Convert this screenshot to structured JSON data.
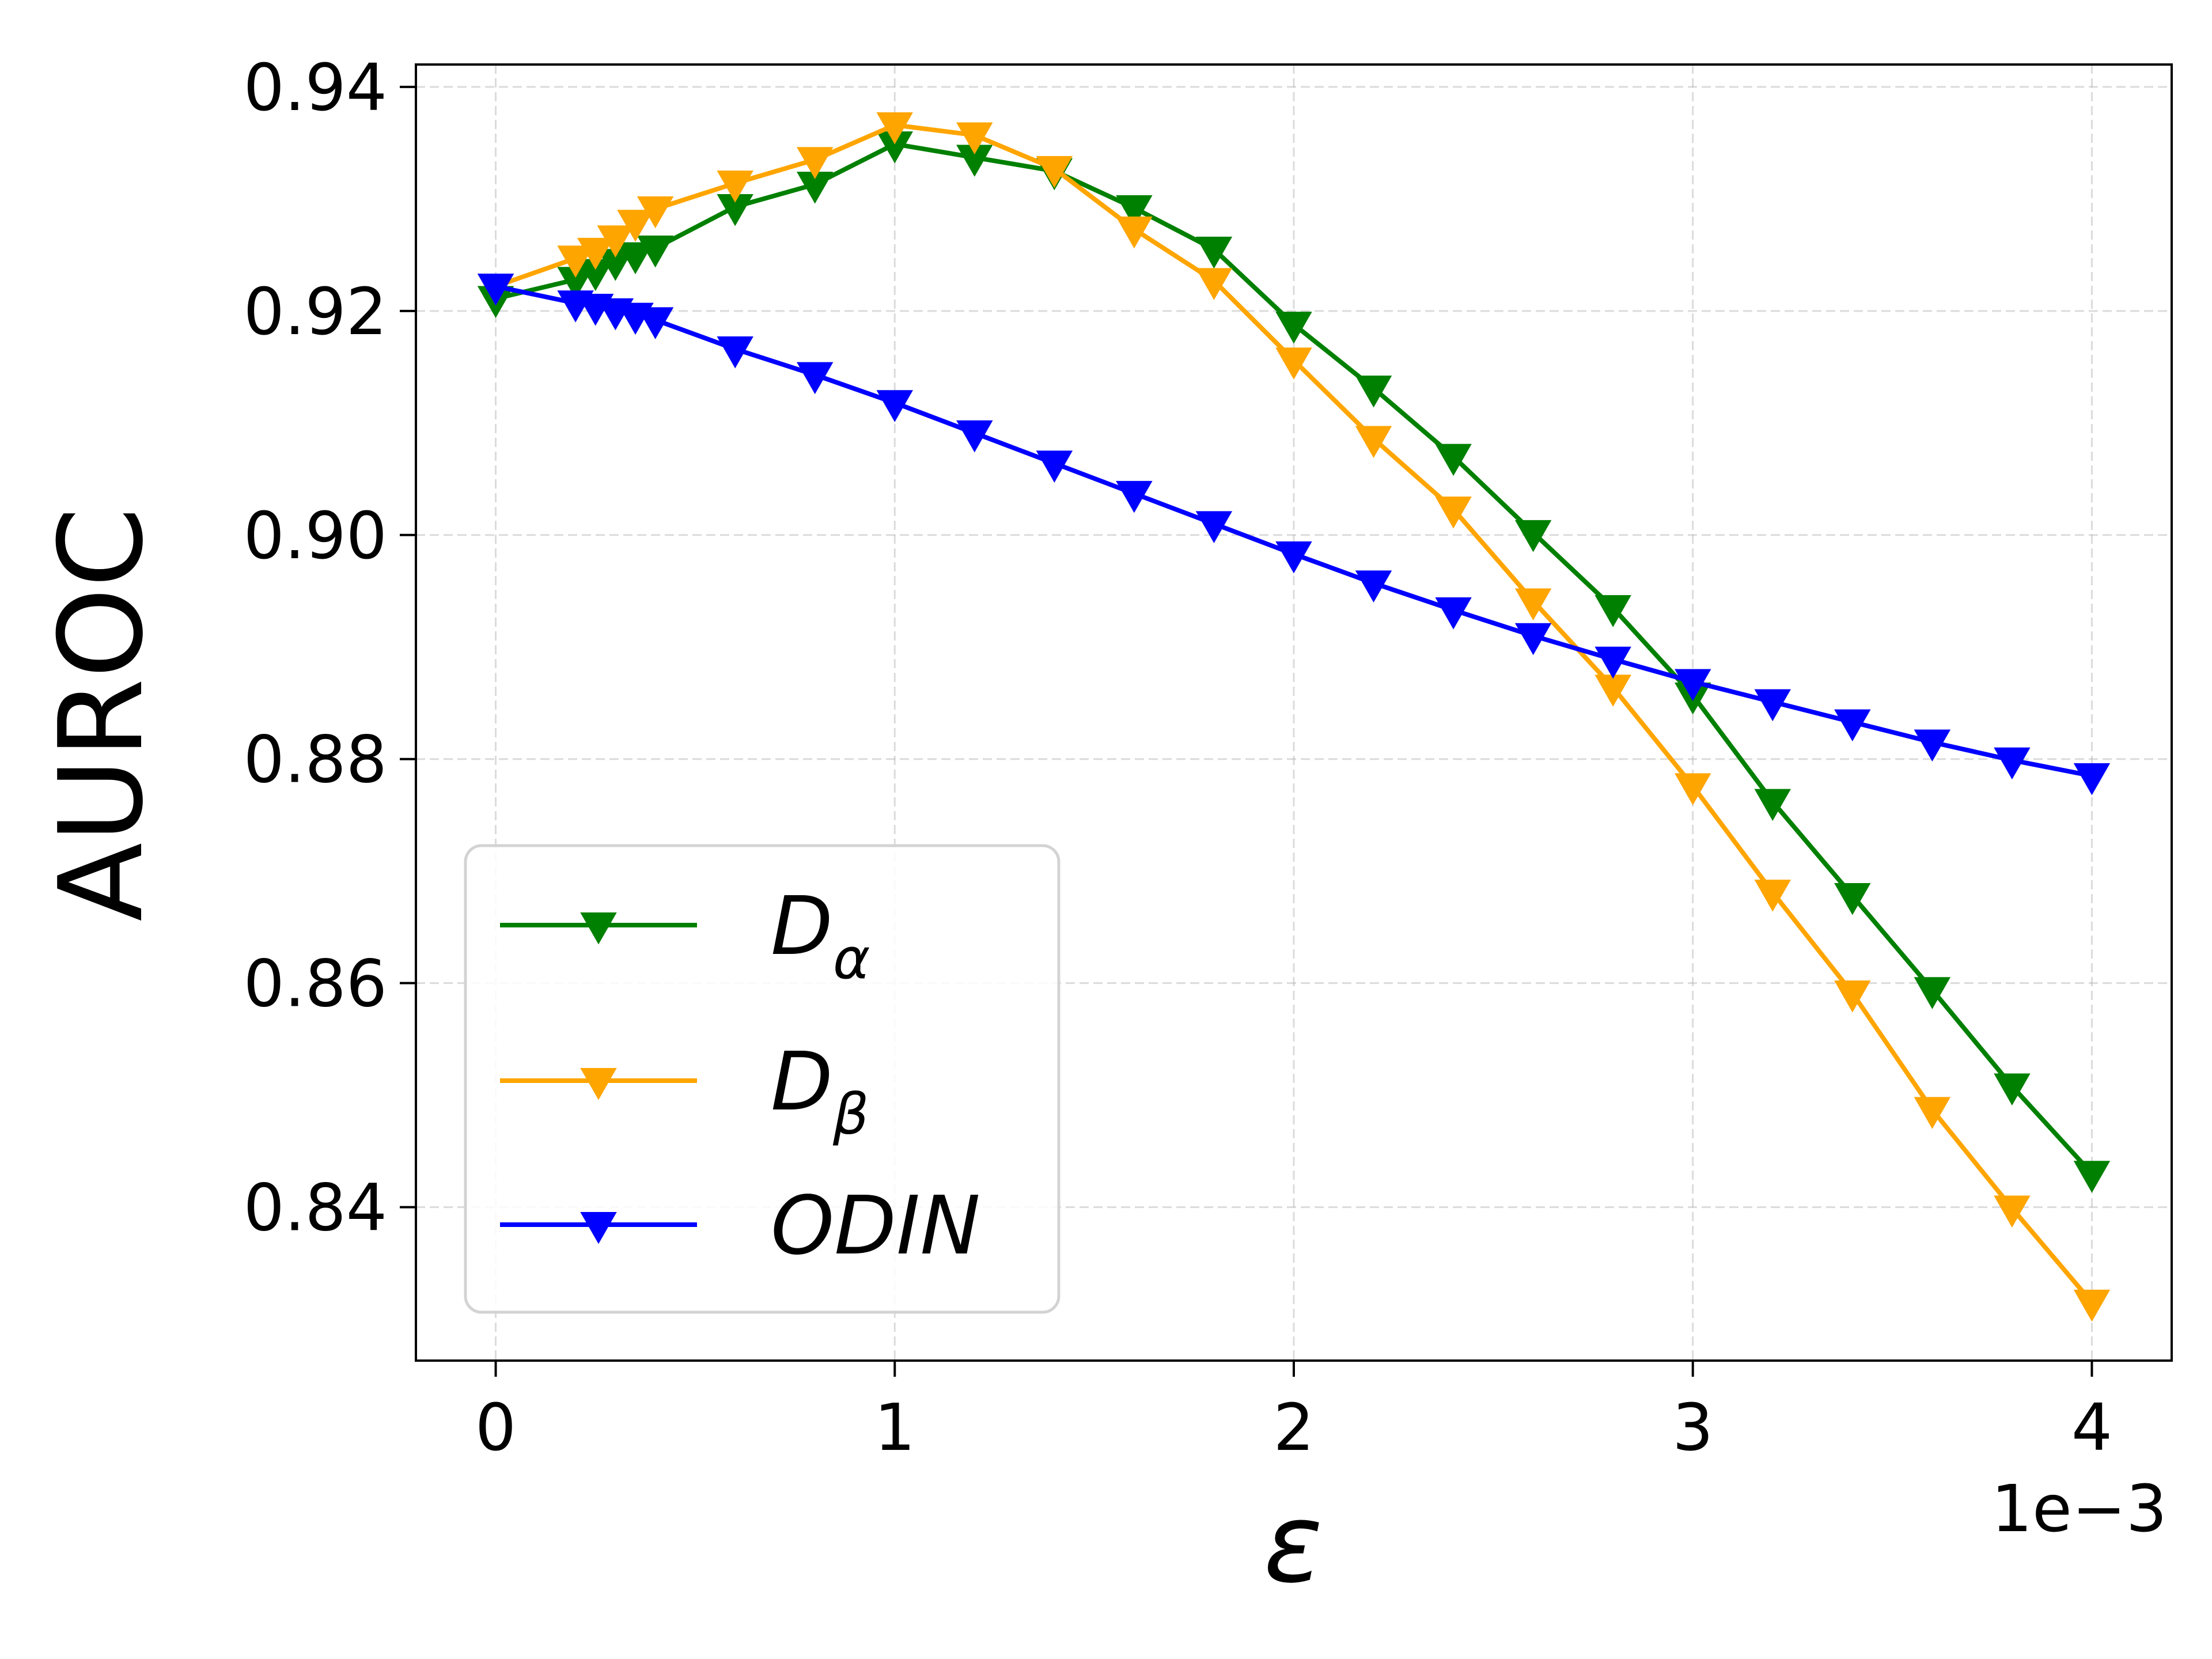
{
  "chart_data": {
    "type": "line",
    "xlabel": "ε",
    "ylabel": "AUROC",
    "x_offset_text": "1e−3",
    "xlim": [
      -0.0002,
      0.0042
    ],
    "ylim": [
      0.8263,
      0.942
    ],
    "xticks": [
      0,
      0.001,
      0.002,
      0.003,
      0.004
    ],
    "xtick_labels": [
      "0",
      "1",
      "2",
      "3",
      "4"
    ],
    "yticks": [
      0.84,
      0.86,
      0.88,
      0.9,
      0.92,
      0.94
    ],
    "ytick_labels": [
      "0.84",
      "0.86",
      "0.88",
      "0.90",
      "0.92",
      "0.94"
    ],
    "grid": true,
    "legend_position": "lower-left",
    "series": [
      {
        "name": "D",
        "subscript": "α",
        "color": "#008000",
        "marker": "triangle-down",
        "x": [
          0,
          0.0002,
          0.00025,
          0.0003,
          0.00035,
          0.0004,
          0.0006,
          0.0008,
          0.001,
          0.0012,
          0.0014,
          0.0016,
          0.0018,
          0.002,
          0.0022,
          0.0024,
          0.0026,
          0.0028,
          0.003,
          0.0032,
          0.0034,
          0.0036,
          0.0038,
          0.004
        ],
        "y": [
          0.9211,
          0.9228,
          0.9235,
          0.9244,
          0.925,
          0.9256,
          0.9293,
          0.9313,
          0.9349,
          0.9337,
          0.9325,
          0.9292,
          0.9255,
          0.9188,
          0.9131,
          0.907,
          0.9002,
          0.8935,
          0.8857,
          0.8762,
          0.8678,
          0.8594,
          0.8508,
          0.843
        ]
      },
      {
        "name": "D",
        "subscript": "β",
        "color": "#FFA500",
        "marker": "triangle-down",
        "x": [
          0,
          0.0002,
          0.00025,
          0.0003,
          0.00035,
          0.0004,
          0.0006,
          0.0008,
          0.001,
          0.0012,
          0.0014,
          0.0016,
          0.0018,
          0.002,
          0.0022,
          0.0024,
          0.0026,
          0.0028,
          0.003,
          0.0032,
          0.0034,
          0.0036,
          0.0038,
          0.004
        ],
        "y": [
          0.9222,
          0.9247,
          0.9254,
          0.9265,
          0.9279,
          0.9291,
          0.9314,
          0.9335,
          0.9366,
          0.9357,
          0.9327,
          0.9273,
          0.9227,
          0.9156,
          0.9086,
          0.9023,
          0.8941,
          0.8864,
          0.8776,
          0.8681,
          0.8591,
          0.8487,
          0.8399,
          0.8315
        ]
      },
      {
        "name": "ODIN",
        "subscript": "",
        "color": "#0000FF",
        "marker": "triangle-down",
        "x": [
          0,
          0.0002,
          0.00025,
          0.0003,
          0.00035,
          0.0004,
          0.0006,
          0.0008,
          0.001,
          0.0012,
          0.0014,
          0.0016,
          0.0018,
          0.002,
          0.0022,
          0.0024,
          0.0026,
          0.0028,
          0.003,
          0.0032,
          0.0034,
          0.0036,
          0.0038,
          0.004
        ],
        "y": [
          0.9222,
          0.9207,
          0.9204,
          0.92,
          0.9196,
          0.9192,
          0.9166,
          0.9143,
          0.9118,
          0.9091,
          0.9064,
          0.9037,
          0.901,
          0.8983,
          0.8957,
          0.8933,
          0.891,
          0.8889,
          0.8869,
          0.8851,
          0.8833,
          0.8815,
          0.8799,
          0.8785
        ]
      }
    ]
  }
}
